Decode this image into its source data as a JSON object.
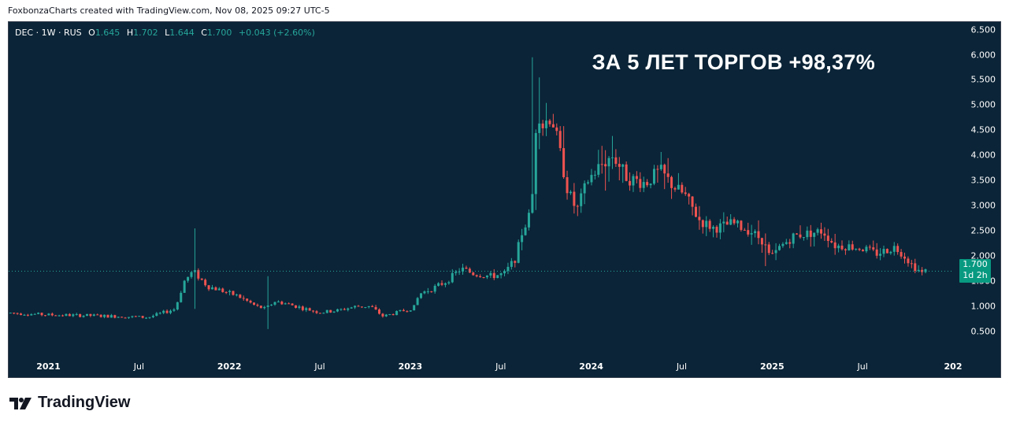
{
  "header": {
    "attribution": "FoxbonzaCharts created with TradingView.com, Nov 08, 2025 09:27 UTC-5"
  },
  "legend": {
    "symbol": "DEC · 1W · RUS",
    "o_key": "O",
    "o": "1.645",
    "h_key": "H",
    "h": "1.702",
    "l_key": "L",
    "l": "1.644",
    "c_key": "C",
    "c": "1.700",
    "change": "+0.043 (+2.60%)"
  },
  "headline": "ЗА 5 ЛЕТ ТОРГОВ +98,37%",
  "last_price": {
    "price": "1.700",
    "countdown": "1d 2h"
  },
  "footer": {
    "brand": "TradingView"
  },
  "colors": {
    "background": "#0b2437",
    "up": "#26a69a",
    "down": "#ef5350",
    "last_price_box": "#089981"
  },
  "chart_data": {
    "type": "candlestick",
    "interval": "1W",
    "yticks": [
      "6.500",
      "6.000",
      "5.500",
      "5.000",
      "4.500",
      "4.000",
      "3.500",
      "3.000",
      "2.500",
      "2.000",
      "1.500",
      "1.000",
      "0.500"
    ],
    "ylim": [
      0.0,
      6.65
    ],
    "xticks": [
      {
        "label": "2021",
        "t": 2021.0,
        "major": true
      },
      {
        "label": "Jul",
        "t": 2021.5,
        "major": false
      },
      {
        "label": "2022",
        "t": 2022.0,
        "major": true
      },
      {
        "label": "Jul",
        "t": 2022.5,
        "major": false
      },
      {
        "label": "2023",
        "t": 2023.0,
        "major": true
      },
      {
        "label": "Jul",
        "t": 2023.5,
        "major": false
      },
      {
        "label": "2024",
        "t": 2024.0,
        "major": true
      },
      {
        "label": "Jul",
        "t": 2024.5,
        "major": false
      },
      {
        "label": "2025",
        "t": 2025.0,
        "major": true
      },
      {
        "label": "Jul",
        "t": 2025.5,
        "major": false
      },
      {
        "label": "202",
        "t": 2026.0,
        "major": true
      }
    ],
    "xlim": [
      2020.78,
      2026.0
    ],
    "last_close": 1.7,
    "close_path": [
      [
        2020.79,
        0.87
      ],
      [
        2021.0,
        0.83
      ],
      [
        2021.2,
        0.82
      ],
      [
        2021.4,
        0.8
      ],
      [
        2021.55,
        0.78
      ],
      [
        2021.7,
        0.95
      ],
      [
        2021.75,
        1.5
      ],
      [
        2021.8,
        1.7
      ],
      [
        2021.88,
        1.4
      ],
      [
        2021.97,
        1.3
      ],
      [
        2022.05,
        1.2
      ],
      [
        2022.15,
        1.0
      ],
      [
        2022.2,
        0.95
      ],
      [
        2022.25,
        1.1
      ],
      [
        2022.32,
        1.05
      ],
      [
        2022.42,
        0.95
      ],
      [
        2022.5,
        0.88
      ],
      [
        2022.6,
        0.92
      ],
      [
        2022.7,
        1.0
      ],
      [
        2022.78,
        1.0
      ],
      [
        2022.85,
        0.8
      ],
      [
        2022.9,
        0.85
      ],
      [
        2022.97,
        0.92
      ],
      [
        2023.02,
        0.98
      ],
      [
        2023.05,
        1.25
      ],
      [
        2023.12,
        1.35
      ],
      [
        2023.2,
        1.5
      ],
      [
        2023.28,
        1.75
      ],
      [
        2023.35,
        1.65
      ],
      [
        2023.45,
        1.6
      ],
      [
        2023.52,
        1.65
      ],
      [
        2023.58,
        1.95
      ],
      [
        2023.62,
        2.5
      ],
      [
        2023.67,
        2.9
      ],
      [
        2023.7,
        5.0
      ],
      [
        2023.73,
        4.6
      ],
      [
        2023.78,
        4.8
      ],
      [
        2023.83,
        4.0
      ],
      [
        2023.87,
        3.3
      ],
      [
        2023.92,
        2.9
      ],
      [
        2023.98,
        3.5
      ],
      [
        2024.05,
        3.8
      ],
      [
        2024.12,
        4.0
      ],
      [
        2024.2,
        3.55
      ],
      [
        2024.3,
        3.45
      ],
      [
        2024.38,
        3.7
      ],
      [
        2024.45,
        3.4
      ],
      [
        2024.52,
        3.2
      ],
      [
        2024.6,
        2.7
      ],
      [
        2024.68,
        2.55
      ],
      [
        2024.78,
        2.65
      ],
      [
        2024.88,
        2.5
      ],
      [
        2024.95,
        2.3
      ],
      [
        2024.99,
        1.95
      ],
      [
        2025.05,
        2.2
      ],
      [
        2025.12,
        2.4
      ],
      [
        2025.2,
        2.45
      ],
      [
        2025.28,
        2.5
      ],
      [
        2025.35,
        2.2
      ],
      [
        2025.42,
        2.2
      ],
      [
        2025.5,
        2.15
      ],
      [
        2025.58,
        2.05
      ],
      [
        2025.68,
        2.18
      ],
      [
        2025.72,
        2.05
      ],
      [
        2025.78,
        1.8
      ],
      [
        2025.83,
        1.66
      ],
      [
        2025.85,
        1.7
      ]
    ],
    "spikes": [
      {
        "t": 2021.8,
        "high": 2.55,
        "low": 0.95
      },
      {
        "t": 2022.22,
        "high": 1.6,
        "low": 0.55
      },
      {
        "t": 2023.68,
        "high": 5.95,
        "low": 2.85
      },
      {
        "t": 2023.72,
        "high": 5.55,
        "low": 4.3
      },
      {
        "t": 2024.08,
        "high": 4.1,
        "low": 3.3
      },
      {
        "t": 2024.97,
        "high": 2.45,
        "low": 1.8
      }
    ]
  }
}
